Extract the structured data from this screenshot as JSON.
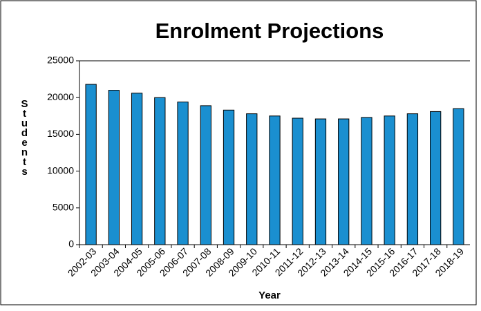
{
  "chart_data": {
    "type": "bar",
    "title": "Enrolment Projections",
    "x_label": "Year",
    "y_label": "Students",
    "categories": [
      "2002-03",
      "2003-04",
      "2004-05",
      "2005-06",
      "2006-07",
      "2007-08",
      "2008-09",
      "2009-10",
      "2010-11",
      "2011-12",
      "2012-13",
      "2013-14",
      "2014-15",
      "2015-16",
      "2016-17",
      "2017-18",
      "2018-19"
    ],
    "values": [
      21800,
      21000,
      20600,
      20000,
      19400,
      18900,
      18300,
      17800,
      17500,
      17200,
      17100,
      17100,
      17300,
      17500,
      17800,
      18100,
      18500
    ],
    "color": "#1a8fd0",
    "ylim": [
      0,
      25000
    ],
    "yticks": [
      0,
      5000,
      10000,
      15000,
      20000,
      25000
    ],
    "grid": false
  }
}
